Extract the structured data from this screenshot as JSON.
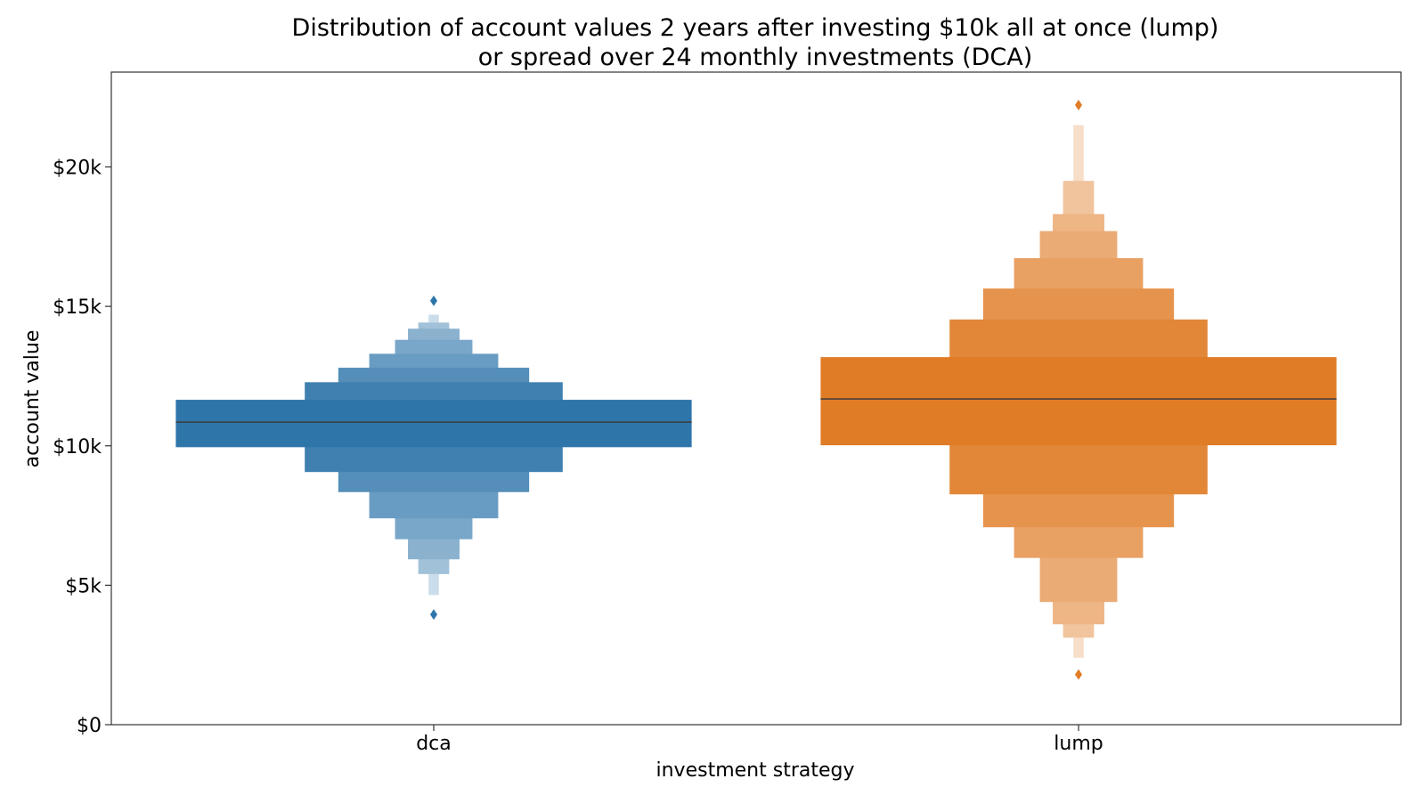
{
  "chart_data": {
    "type": "letter-value (boxen) plot",
    "title_lines": [
      "Distribution of account values 2 years after investing $10k all at once (lump)",
      "or spread over 24 monthly investments (DCA)"
    ],
    "xlabel": "investment strategy",
    "ylabel": "account value",
    "categories": [
      "dca",
      "lump"
    ],
    "ylim": [
      0,
      23400
    ],
    "y_ticks": [
      {
        "value": 0,
        "label": "$0"
      },
      {
        "value": 5000,
        "label": "$5k"
      },
      {
        "value": 10000,
        "label": "$10k"
      },
      {
        "value": 15000,
        "label": "$15k"
      },
      {
        "value": 20000,
        "label": "$20k"
      }
    ],
    "series": [
      {
        "category": "dca",
        "color": "#2e75aa",
        "median": 10850,
        "letter_values": [
          [
            9950,
            11650
          ],
          [
            9060,
            12280
          ],
          [
            8340,
            12800
          ],
          [
            7400,
            13300
          ],
          [
            6650,
            13800
          ],
          [
            5930,
            14200
          ],
          [
            5400,
            14420
          ],
          [
            4650,
            14700
          ]
        ],
        "outliers": [
          3950,
          15200
        ]
      },
      {
        "category": "lump",
        "color": "#e07b26",
        "median": 11680,
        "letter_values": [
          [
            10020,
            13180
          ],
          [
            8260,
            14530
          ],
          [
            7080,
            15640
          ],
          [
            5980,
            16730
          ],
          [
            4400,
            17700
          ],
          [
            3600,
            18310
          ],
          [
            3120,
            19500
          ],
          [
            2400,
            21500
          ]
        ],
        "outliers": [
          1800,
          22220
        ]
      }
    ],
    "grid": false,
    "legend": "none"
  }
}
